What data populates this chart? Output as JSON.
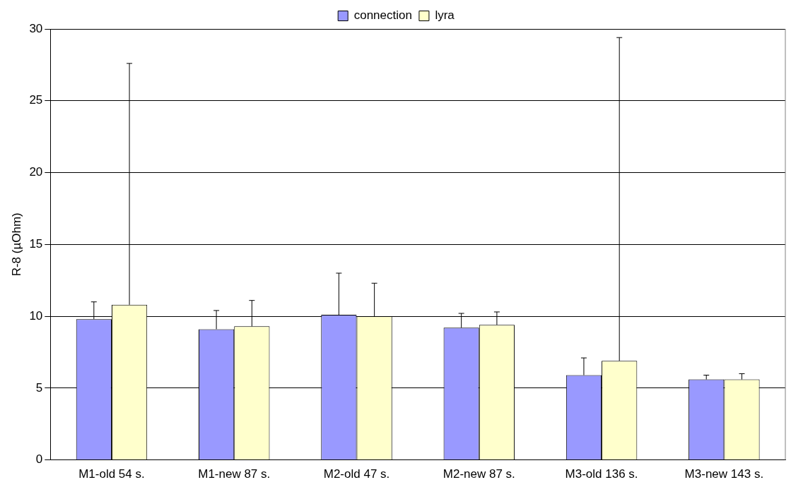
{
  "chart_data": {
    "type": "bar",
    "ylabel": "R-8 (µOhm)",
    "categories": [
      "M1-old 54 s.",
      "M1-new 87 s.",
      "M2-old 47 s.",
      "M2-new 87 s.",
      "M3-old 136 s.",
      "M3-new 143 s."
    ],
    "series": [
      {
        "name": "connection",
        "color": "#9999ff",
        "values": [
          9.8,
          9.1,
          10.1,
          9.2,
          5.9,
          5.6
        ],
        "errors": [
          [
            9.8,
            11.0
          ],
          [
            9.1,
            10.4
          ],
          [
            10.1,
            13.0
          ],
          [
            9.2,
            10.2
          ],
          [
            5.9,
            7.1
          ],
          [
            5.6,
            5.9
          ]
        ]
      },
      {
        "name": "lyra",
        "color": "#ffffcc",
        "values": [
          10.8,
          9.3,
          10.0,
          9.4,
          6.9,
          5.6
        ],
        "errors": [
          [
            10.8,
            27.6
          ],
          [
            9.3,
            11.1
          ],
          [
            10.0,
            12.3
          ],
          [
            9.4,
            10.3
          ],
          [
            6.9,
            29.4
          ],
          [
            5.6,
            6.0
          ]
        ]
      }
    ],
    "ylim": [
      0,
      30
    ],
    "yticks": [
      0,
      5,
      10,
      15,
      20,
      25,
      30
    ],
    "grid": "y",
    "legend": "top"
  }
}
